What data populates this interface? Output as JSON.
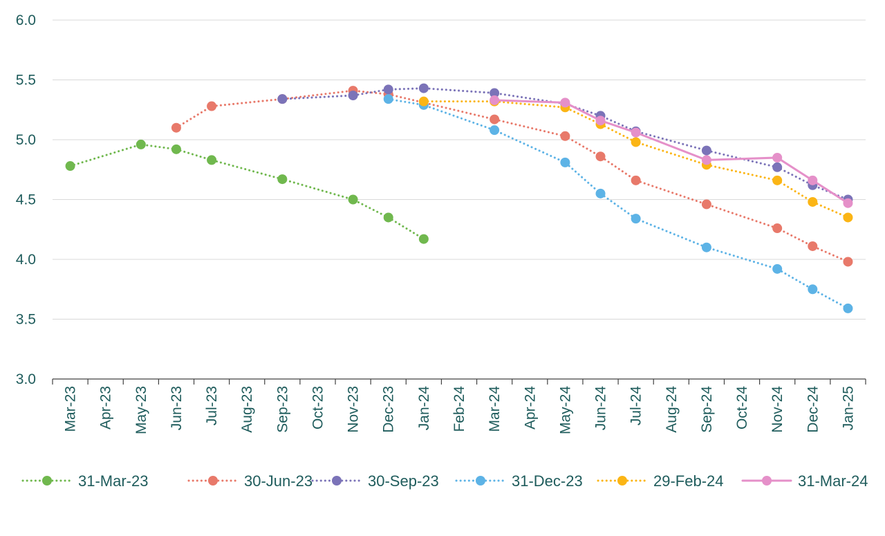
{
  "chart_data": {
    "type": "line",
    "title": "",
    "xlabel": "",
    "ylabel": "",
    "ylim": [
      3.0,
      6.0
    ],
    "yticks": [
      "3.0",
      "3.5",
      "4.0",
      "4.5",
      "5.0",
      "5.5",
      "6.0"
    ],
    "categories": [
      "Mar-23",
      "Apr-23",
      "May-23",
      "Jun-23",
      "Jul-23",
      "Aug-23",
      "Sep-23",
      "Oct-23",
      "Nov-23",
      "Dec-23",
      "Jan-24",
      "Feb-24",
      "Mar-24",
      "Apr-24",
      "May-24",
      "Jun-24",
      "Jul-24",
      "Aug-24",
      "Sep-24",
      "Oct-24",
      "Nov-24",
      "Dec-24",
      "Jan-25"
    ],
    "grid": "horizontal",
    "legend_position": "bottom",
    "series": [
      {
        "name": "31-Mar-23",
        "color": "#70b84e",
        "dash": "dotted",
        "points": [
          {
            "x": "Mar-23",
            "y": 4.78
          },
          {
            "x": "May-23",
            "y": 4.96
          },
          {
            "x": "Jun-23",
            "y": 4.92
          },
          {
            "x": "Jul-23",
            "y": 4.83
          },
          {
            "x": "Sep-23",
            "y": 4.67
          },
          {
            "x": "Nov-23",
            "y": 4.5
          },
          {
            "x": "Dec-23",
            "y": 4.35
          },
          {
            "x": "Jan-24",
            "y": 4.17
          }
        ]
      },
      {
        "name": "30-Jun-23",
        "color": "#e8796a",
        "dash": "dotted",
        "points": [
          {
            "x": "Jun-23",
            "y": 5.1
          },
          {
            "x": "Jul-23",
            "y": 5.28
          },
          {
            "x": "Sep-23",
            "y": 5.34
          },
          {
            "x": "Nov-23",
            "y": 5.41
          },
          {
            "x": "Dec-23",
            "y": 5.38
          },
          {
            "x": "Mar-24",
            "y": 5.17
          },
          {
            "x": "May-24",
            "y": 5.03
          },
          {
            "x": "Jun-24",
            "y": 4.86
          },
          {
            "x": "Jul-24",
            "y": 4.66
          },
          {
            "x": "Sep-24",
            "y": 4.46
          },
          {
            "x": "Nov-24",
            "y": 4.26
          },
          {
            "x": "Dec-24",
            "y": 4.11
          },
          {
            "x": "Jan-25",
            "y": 3.98
          }
        ]
      },
      {
        "name": "30-Sep-23",
        "color": "#7b73b8",
        "dash": "dotted",
        "points": [
          {
            "x": "Sep-23",
            "y": 5.34
          },
          {
            "x": "Nov-23",
            "y": 5.37
          },
          {
            "x": "Dec-23",
            "y": 5.42
          },
          {
            "x": "Jan-24",
            "y": 5.43
          },
          {
            "x": "Mar-24",
            "y": 5.39
          },
          {
            "x": "May-24",
            "y": 5.3
          },
          {
            "x": "Jun-24",
            "y": 5.2
          },
          {
            "x": "Jul-24",
            "y": 5.07
          },
          {
            "x": "Sep-24",
            "y": 4.91
          },
          {
            "x": "Nov-24",
            "y": 4.77
          },
          {
            "x": "Dec-24",
            "y": 4.62
          },
          {
            "x": "Jan-25",
            "y": 4.5
          }
        ]
      },
      {
        "name": "31-Dec-23",
        "color": "#5db3e6",
        "dash": "dotted",
        "points": [
          {
            "x": "Dec-23",
            "y": 5.34
          },
          {
            "x": "Jan-24",
            "y": 5.29
          },
          {
            "x": "Mar-24",
            "y": 5.08
          },
          {
            "x": "May-24",
            "y": 4.81
          },
          {
            "x": "Jun-24",
            "y": 4.55
          },
          {
            "x": "Jul-24",
            "y": 4.34
          },
          {
            "x": "Sep-24",
            "y": 4.1
          },
          {
            "x": "Nov-24",
            "y": 3.92
          },
          {
            "x": "Dec-24",
            "y": 3.75
          },
          {
            "x": "Jan-25",
            "y": 3.59
          }
        ]
      },
      {
        "name": "29-Feb-24",
        "color": "#fbb515",
        "dash": "dotted",
        "points": [
          {
            "x": "Jan-24",
            "y": 5.32
          },
          {
            "x": "Mar-24",
            "y": 5.32
          },
          {
            "x": "May-24",
            "y": 5.27
          },
          {
            "x": "Jun-24",
            "y": 5.13
          },
          {
            "x": "Jul-24",
            "y": 4.98
          },
          {
            "x": "Sep-24",
            "y": 4.79
          },
          {
            "x": "Nov-24",
            "y": 4.66
          },
          {
            "x": "Dec-24",
            "y": 4.48
          },
          {
            "x": "Jan-25",
            "y": 4.35
          }
        ]
      },
      {
        "name": "31-Mar-24",
        "color": "#e590c9",
        "dash": "solid",
        "points": [
          {
            "x": "Mar-24",
            "y": 5.33
          },
          {
            "x": "May-24",
            "y": 5.31
          },
          {
            "x": "Jun-24",
            "y": 5.16
          },
          {
            "x": "Jul-24",
            "y": 5.06
          },
          {
            "x": "Sep-24",
            "y": 4.83
          },
          {
            "x": "Nov-24",
            "y": 4.85
          },
          {
            "x": "Dec-24",
            "y": 4.66
          },
          {
            "x": "Jan-25",
            "y": 4.47
          }
        ]
      }
    ]
  }
}
